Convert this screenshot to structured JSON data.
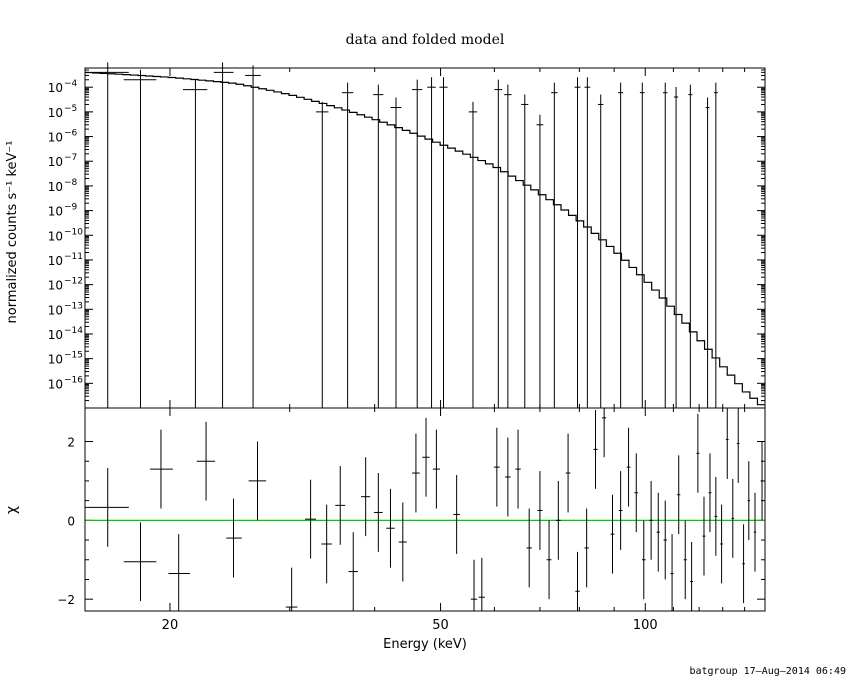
{
  "chart_data": [
    {
      "type": "step-line",
      "title": "data and folded model",
      "xlabel": "",
      "ylabel": "normalized counts s⁻¹ keV⁻¹",
      "xscale": "log",
      "yscale": "log",
      "xlim": [
        15,
        150
      ],
      "ylim": [
        1e-17,
        0.0006
      ],
      "yticks": [
        {
          "v": 0.0001,
          "m": "10",
          "e": "−4"
        },
        {
          "v": 1e-05,
          "m": "10",
          "e": "−5"
        },
        {
          "v": 1e-06,
          "m": "10",
          "e": "−6"
        },
        {
          "v": 1e-07,
          "m": "10",
          "e": "−7"
        },
        {
          "v": 1e-08,
          "m": "10",
          "e": "−8"
        },
        {
          "v": 1e-09,
          "m": "10",
          "e": "−9"
        },
        {
          "v": 1e-10,
          "m": "10",
          "e": "−10"
        },
        {
          "v": 1e-11,
          "m": "10",
          "e": "−11"
        },
        {
          "v": 1e-12,
          "m": "10",
          "e": "−12"
        },
        {
          "v": 1e-13,
          "m": "10",
          "e": "−13"
        },
        {
          "v": 1e-14,
          "m": "10",
          "e": "−14"
        },
        {
          "v": 1e-15,
          "m": "10",
          "e": "−15"
        },
        {
          "v": 1e-16,
          "m": "10",
          "e": "−16"
        }
      ],
      "model_exponent_points": {
        "x": [
          15,
          20,
          25,
          30,
          35,
          40,
          45,
          50,
          60,
          70,
          80,
          90,
          100,
          110,
          120,
          130,
          140,
          150
        ],
        "log10_y": [
          -3.4,
          -3.6,
          -3.85,
          -4.3,
          -4.8,
          -5.3,
          -5.8,
          -6.3,
          -7.2,
          -8.3,
          -9.4,
          -10.6,
          -11.8,
          -13.0,
          -14.2,
          -15.3,
          -16.3,
          -17.0
        ]
      },
      "data_points": [
        {
          "x": 16.2,
          "xlo": 15.0,
          "xhi": 17.4,
          "y": 0.0004
        },
        {
          "x": 18.1,
          "xlo": 17.1,
          "xhi": 19.1,
          "y": 0.0002
        },
        {
          "x": 21.8,
          "xlo": 20.9,
          "xhi": 22.7,
          "y": 8e-05
        },
        {
          "x": 23.9,
          "xlo": 23.2,
          "xhi": 24.8,
          "y": 0.0004
        },
        {
          "x": 26.5,
          "xlo": 25.8,
          "xhi": 27.2,
          "y": 0.0003
        },
        {
          "x": 33.5,
          "xlo": 32.8,
          "xhi": 34.2,
          "y": 1e-05
        },
        {
          "x": 36.5,
          "xlo": 35.8,
          "xhi": 37.2,
          "y": 6e-05
        },
        {
          "x": 40.5,
          "xlo": 39.8,
          "xhi": 41.2,
          "y": 5e-05
        },
        {
          "x": 43.0,
          "xlo": 42.2,
          "xhi": 43.8,
          "y": 1.5e-05
        },
        {
          "x": 46.2,
          "xlo": 45.4,
          "xhi": 47.0,
          "y": 8e-05
        },
        {
          "x": 48.5,
          "xlo": 47.8,
          "xhi": 49.2,
          "y": 0.0001
        },
        {
          "x": 50.5,
          "xlo": 49.8,
          "xhi": 51.2,
          "y": 0.0001
        },
        {
          "x": 55.8,
          "xlo": 55.0,
          "xhi": 56.6,
          "y": 1e-05
        },
        {
          "x": 60.8,
          "xlo": 60.0,
          "xhi": 61.6,
          "y": 8e-05
        },
        {
          "x": 62.8,
          "xlo": 62.0,
          "xhi": 63.6,
          "y": 5e-05
        },
        {
          "x": 66.5,
          "xlo": 65.7,
          "xhi": 67.3,
          "y": 2e-05
        },
        {
          "x": 70.0,
          "xlo": 69.2,
          "xhi": 70.8,
          "y": 3e-06
        },
        {
          "x": 73.5,
          "xlo": 72.7,
          "xhi": 74.3,
          "y": 6e-05
        },
        {
          "x": 79.5,
          "xlo": 78.7,
          "xhi": 80.3,
          "y": 0.0001
        },
        {
          "x": 82.2,
          "xlo": 81.4,
          "xhi": 83.0,
          "y": 0.0001
        },
        {
          "x": 86.0,
          "xlo": 85.2,
          "xhi": 86.8,
          "y": 2e-05
        },
        {
          "x": 92.0,
          "xlo": 91.2,
          "xhi": 92.8,
          "y": 6e-05
        },
        {
          "x": 99.0,
          "xlo": 98.2,
          "xhi": 99.8,
          "y": 6e-05
        },
        {
          "x": 107.0,
          "xlo": 106.2,
          "xhi": 107.8,
          "y": 6e-05
        },
        {
          "x": 111.0,
          "xlo": 110.2,
          "xhi": 111.8,
          "y": 4e-05
        },
        {
          "x": 116.5,
          "xlo": 115.7,
          "xhi": 117.3,
          "y": 5e-05
        },
        {
          "x": 123.5,
          "xlo": 122.7,
          "xhi": 124.3,
          "y": 1.5e-05
        },
        {
          "x": 127.0,
          "xlo": 126.2,
          "xhi": 127.8,
          "y": 6e-05
        }
      ]
    },
    {
      "type": "scatter",
      "xlabel": "Energy (keV)",
      "ylabel": "χ",
      "xscale": "log",
      "xlim": [
        15,
        150
      ],
      "ylim": [
        -2.3,
        2.85
      ],
      "xticks": [
        20,
        50,
        100
      ],
      "yticks": [
        -2,
        0,
        2
      ],
      "reference_line": {
        "y": 0,
        "color": "#00cc00"
      },
      "points": [
        {
          "x": 16.2,
          "xlo": 15.0,
          "xhi": 17.4,
          "y": 0.33,
          "err": 1.0
        },
        {
          "x": 18.1,
          "xlo": 17.1,
          "xhi": 19.1,
          "y": -1.05,
          "err": 1.0
        },
        {
          "x": 19.4,
          "xlo": 18.7,
          "xhi": 20.2,
          "y": 1.3,
          "err": 1.0
        },
        {
          "x": 20.6,
          "xlo": 19.9,
          "xhi": 21.4,
          "y": -1.35,
          "err": 1.0
        },
        {
          "x": 22.6,
          "xlo": 21.9,
          "xhi": 23.3,
          "y": 1.5,
          "err": 1.0
        },
        {
          "x": 24.8,
          "xlo": 24.2,
          "xhi": 25.5,
          "y": -0.45,
          "err": 1.0
        },
        {
          "x": 26.9,
          "xlo": 26.1,
          "xhi": 27.7,
          "y": 1.0,
          "err": 1.0
        },
        {
          "x": 30.2,
          "xlo": 29.6,
          "xhi": 30.8,
          "y": -2.2,
          "err": 1.0
        },
        {
          "x": 32.2,
          "xlo": 31.6,
          "xhi": 32.8,
          "y": 0.03,
          "err": 1.0
        },
        {
          "x": 34.0,
          "xlo": 33.4,
          "xhi": 34.6,
          "y": -0.6,
          "err": 1.0
        },
        {
          "x": 35.6,
          "xlo": 35.0,
          "xhi": 36.2,
          "y": 0.38,
          "err": 1.0
        },
        {
          "x": 37.2,
          "xlo": 36.6,
          "xhi": 37.8,
          "y": -1.3,
          "err": 1.0
        },
        {
          "x": 38.8,
          "xlo": 38.2,
          "xhi": 39.4,
          "y": 0.6,
          "err": 1.0
        },
        {
          "x": 40.5,
          "xlo": 39.9,
          "xhi": 41.1,
          "y": 0.2,
          "err": 1.0
        },
        {
          "x": 42.2,
          "xlo": 41.6,
          "xhi": 42.8,
          "y": -0.2,
          "err": 1.0
        },
        {
          "x": 44.0,
          "xlo": 43.4,
          "xhi": 44.6,
          "y": -0.55,
          "err": 1.0
        },
        {
          "x": 46.0,
          "xlo": 45.4,
          "xhi": 46.6,
          "y": 1.2,
          "err": 1.0
        },
        {
          "x": 47.6,
          "xlo": 47.0,
          "xhi": 48.2,
          "y": 1.6,
          "err": 1.0
        },
        {
          "x": 49.3,
          "xlo": 48.7,
          "xhi": 49.9,
          "y": 1.3,
          "err": 1.0
        },
        {
          "x": 52.8,
          "xlo": 52.2,
          "xhi": 53.4,
          "y": 0.15,
          "err": 1.0
        },
        {
          "x": 56.0,
          "xlo": 55.4,
          "xhi": 56.6,
          "y": -2.0,
          "err": 1.0
        },
        {
          "x": 57.5,
          "xlo": 56.9,
          "xhi": 58.1,
          "y": -1.95,
          "err": 1.0
        },
        {
          "x": 60.5,
          "xlo": 59.9,
          "xhi": 61.1,
          "y": 1.35,
          "err": 1.0
        },
        {
          "x": 62.8,
          "xlo": 62.2,
          "xhi": 63.4,
          "y": 1.1,
          "err": 1.0
        },
        {
          "x": 65.0,
          "xlo": 64.4,
          "xhi": 65.6,
          "y": 1.3,
          "err": 1.0
        },
        {
          "x": 67.5,
          "xlo": 66.9,
          "xhi": 68.1,
          "y": -0.7,
          "err": 1.0
        },
        {
          "x": 70.0,
          "xlo": 69.4,
          "xhi": 70.6,
          "y": 0.25,
          "err": 1.0
        },
        {
          "x": 72.2,
          "xlo": 71.6,
          "xhi": 72.8,
          "y": -1.0,
          "err": 1.0
        },
        {
          "x": 74.5,
          "xlo": 73.9,
          "xhi": 75.1,
          "y": 0.0,
          "err": 1.0
        },
        {
          "x": 77.0,
          "xlo": 76.4,
          "xhi": 77.6,
          "y": 1.2,
          "err": 1.0
        },
        {
          "x": 79.5,
          "xlo": 78.9,
          "xhi": 80.1,
          "y": -1.8,
          "err": 1.0
        },
        {
          "x": 82.0,
          "xlo": 81.4,
          "xhi": 82.6,
          "y": -0.7,
          "err": 1.0
        },
        {
          "x": 84.5,
          "xlo": 83.9,
          "xhi": 85.1,
          "y": 1.8,
          "err": 1.0
        },
        {
          "x": 87.0,
          "xlo": 86.4,
          "xhi": 87.6,
          "y": 2.6,
          "err": 1.0
        },
        {
          "x": 89.5,
          "xlo": 88.9,
          "xhi": 90.1,
          "y": -0.35,
          "err": 1.0
        },
        {
          "x": 92.0,
          "xlo": 91.4,
          "xhi": 92.6,
          "y": 0.25,
          "err": 1.0
        },
        {
          "x": 94.5,
          "xlo": 93.9,
          "xhi": 95.1,
          "y": 1.35,
          "err": 1.0
        },
        {
          "x": 97.0,
          "xlo": 96.4,
          "xhi": 97.6,
          "y": 0.7,
          "err": 1.0
        },
        {
          "x": 99.5,
          "xlo": 98.9,
          "xhi": 100.1,
          "y": -1.0,
          "err": 1.0
        },
        {
          "x": 102.0,
          "xlo": 101.4,
          "xhi": 102.6,
          "y": 0.0,
          "err": 1.0
        },
        {
          "x": 104.5,
          "xlo": 103.9,
          "xhi": 105.1,
          "y": -0.3,
          "err": 1.0
        },
        {
          "x": 107.0,
          "xlo": 106.4,
          "xhi": 107.6,
          "y": -0.5,
          "err": 1.0
        },
        {
          "x": 109.5,
          "xlo": 108.9,
          "xhi": 110.1,
          "y": -1.35,
          "err": 1.0
        },
        {
          "x": 112.0,
          "xlo": 111.4,
          "xhi": 112.6,
          "y": 0.65,
          "err": 1.0
        },
        {
          "x": 114.5,
          "xlo": 113.9,
          "xhi": 115.1,
          "y": -1.0,
          "err": 1.0
        },
        {
          "x": 117.0,
          "xlo": 116.4,
          "xhi": 117.6,
          "y": -1.55,
          "err": 1.0
        },
        {
          "x": 119.5,
          "xlo": 118.9,
          "xhi": 120.1,
          "y": 1.7,
          "err": 1.0
        },
        {
          "x": 122.0,
          "xlo": 121.4,
          "xhi": 122.6,
          "y": -0.4,
          "err": 1.0
        },
        {
          "x": 124.5,
          "xlo": 123.9,
          "xhi": 125.1,
          "y": 0.7,
          "err": 1.0
        },
        {
          "x": 127.0,
          "xlo": 126.4,
          "xhi": 127.6,
          "y": 0.1,
          "err": 1.0
        },
        {
          "x": 129.5,
          "xlo": 128.9,
          "xhi": 130.1,
          "y": -0.6,
          "err": 1.0
        },
        {
          "x": 132.0,
          "xlo": 131.4,
          "xhi": 132.6,
          "y": 2.05,
          "err": 1.0
        },
        {
          "x": 134.5,
          "xlo": 133.9,
          "xhi": 135.1,
          "y": 0.05,
          "err": 1.0
        },
        {
          "x": 137.0,
          "xlo": 136.4,
          "xhi": 137.6,
          "y": 1.95,
          "err": 1.0
        },
        {
          "x": 139.5,
          "xlo": 138.9,
          "xhi": 140.1,
          "y": -1.1,
          "err": 1.0
        },
        {
          "x": 142.0,
          "xlo": 141.4,
          "xhi": 142.6,
          "y": 0.5,
          "err": 1.0
        },
        {
          "x": 145.0,
          "xlo": 144.4,
          "xhi": 145.6,
          "y": -0.3,
          "err": 1.0
        },
        {
          "x": 148.5,
          "xlo": 147.8,
          "xhi": 149.2,
          "y": 1.0,
          "err": 1.0
        }
      ]
    }
  ],
  "footer": "batgroup 17–Aug–2014 06:49",
  "colors": {
    "axes": "#000000",
    "reference_line": "#00cc00"
  }
}
